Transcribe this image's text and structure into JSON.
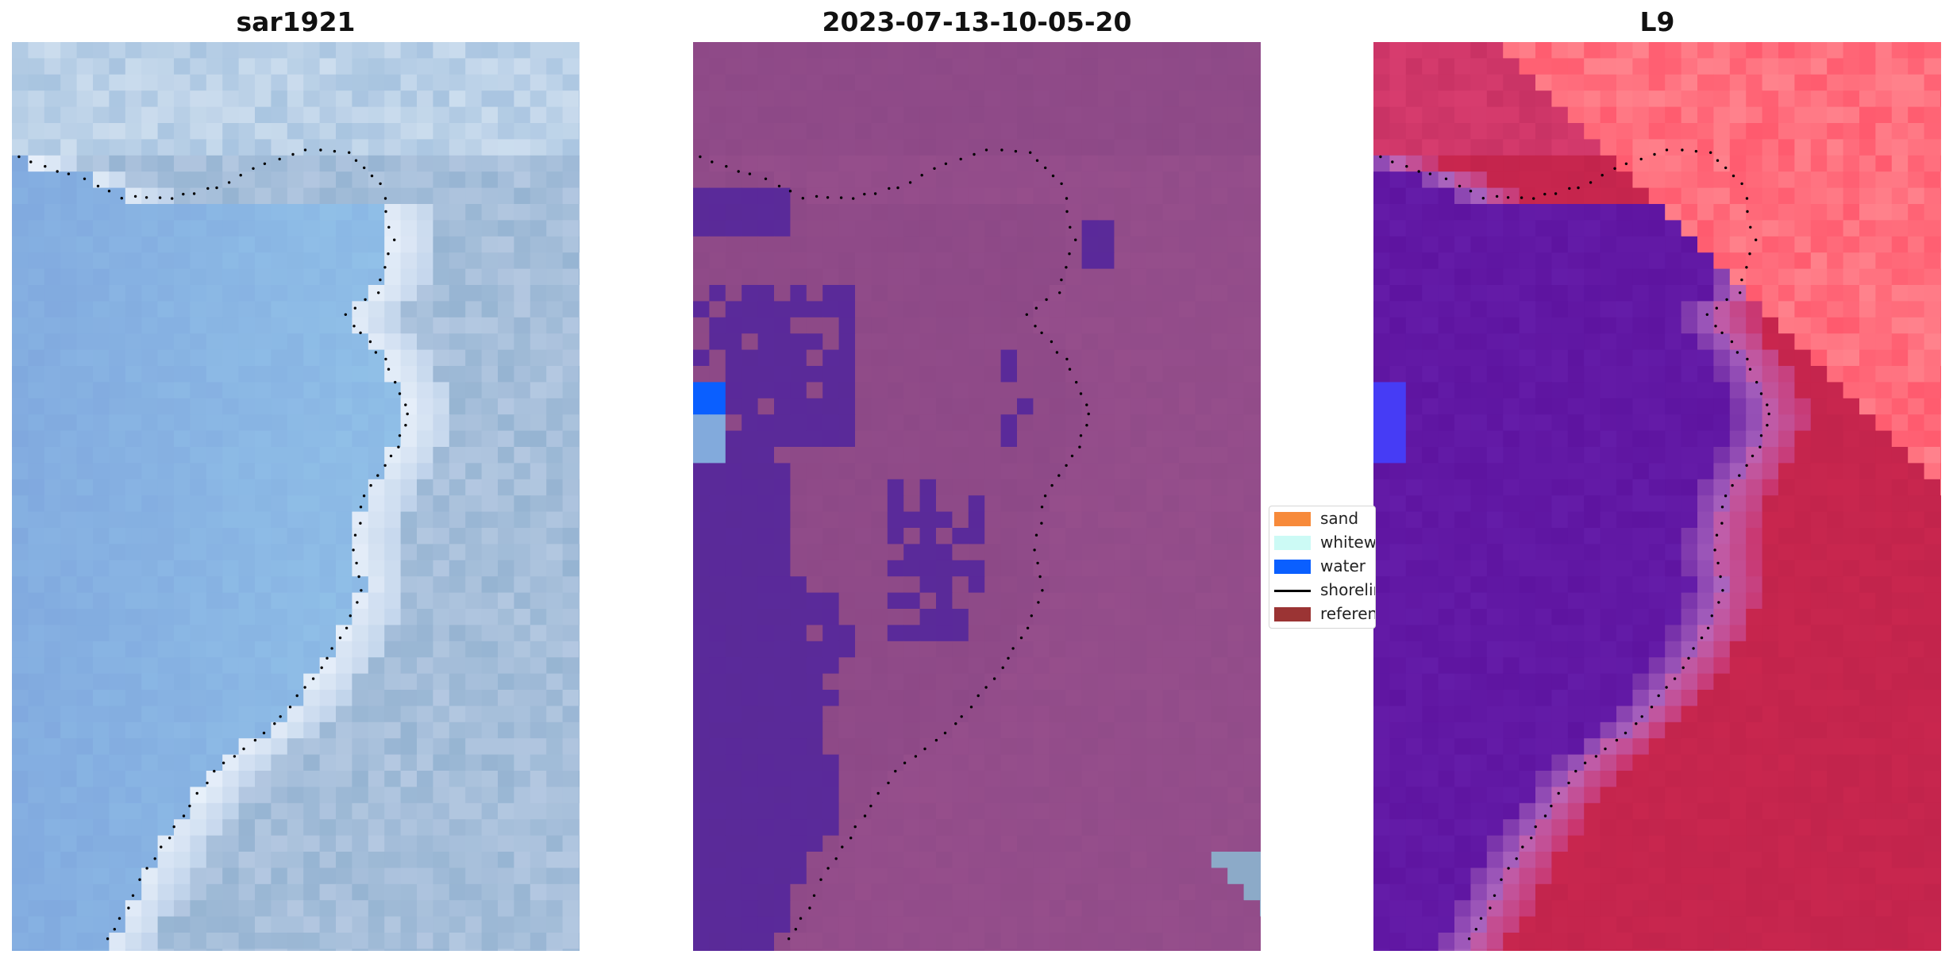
{
  "panels": [
    {
      "title": "sar1921",
      "style": "rgb"
    },
    {
      "title": "2023-07-13-10-05-20",
      "style": "classified"
    },
    {
      "title": "L9",
      "style": "index"
    }
  ],
  "legend": {
    "items": [
      {
        "label": "sand",
        "color": "#f78a3a",
        "kind": "patch"
      },
      {
        "label": "whitewater",
        "color": "#ccfaf5",
        "kind": "patch"
      },
      {
        "label": "water",
        "color": "#0a5fff",
        "kind": "patch"
      },
      {
        "label": "shoreline",
        "color": "#000000",
        "kind": "line"
      },
      {
        "label": "reference shoreline",
        "color": "#9b3434",
        "kind": "patch"
      }
    ]
  },
  "colors": {
    "water_class": "#5a2a98",
    "land_class": "#8d4987",
    "index_water": "#5e14a0",
    "index_land": "#c2244c"
  }
}
